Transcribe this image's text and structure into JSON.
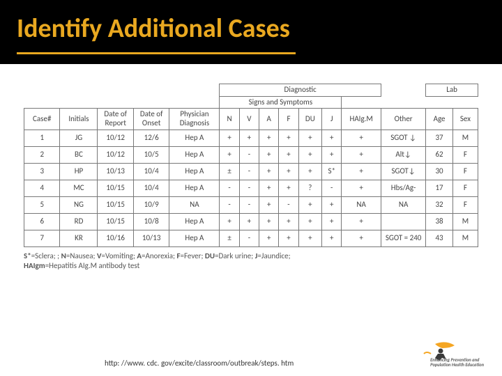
{
  "title": "Identify Additional Cases",
  "colors": {
    "titleBg": "#000000",
    "titleText": "#e9a820",
    "underline": "#e9a820",
    "tableBorder": "#777777",
    "tableText": "#444444",
    "pageBg": "#ffffff"
  },
  "table": {
    "groupHeaders": {
      "diagnostic": "Diagnostic",
      "lab": "Lab",
      "signs": "Signs and Symptoms"
    },
    "columns": [
      "Case#",
      "Initials",
      "Date of Report",
      "Date of Onset",
      "Physician Diagnosis",
      "N",
      "V",
      "A",
      "F",
      "DU",
      "J",
      "HAIg.M",
      "Other",
      "Age",
      "Sex"
    ],
    "rows": [
      [
        "1",
        "JG",
        "10/12",
        "12/6",
        "Hep A",
        "+",
        "+",
        "+",
        "+",
        "+",
        "+",
        "+",
        "SGOT ↓",
        "37",
        "M"
      ],
      [
        "2",
        "BC",
        "10/12",
        "10/5",
        "Hep A",
        "+",
        "-",
        "+",
        "+",
        "+",
        "+",
        "+",
        "Alt↓",
        "62",
        "F"
      ],
      [
        "3",
        "HP",
        "10/13",
        "10/4",
        "Hep A",
        "±",
        "-",
        "+",
        "+",
        "+",
        "S*",
        "+",
        "SGOT↓",
        "30",
        "F"
      ],
      [
        "4",
        "MC",
        "10/15",
        "10/4",
        "Hep A",
        "-",
        "-",
        "+",
        "+",
        "?",
        "-",
        "+",
        "Hbs/Ag-",
        "17",
        "F"
      ],
      [
        "5",
        "NG",
        "10/15",
        "10/9",
        "NA",
        "-",
        "-",
        "+",
        "-",
        "+",
        "+",
        "NA",
        "NA",
        "32",
        "F"
      ],
      [
        "6",
        "RD",
        "10/15",
        "10/8",
        "Hep A",
        "+",
        "+",
        "+",
        "+",
        "+",
        "+",
        "+",
        "",
        "38",
        "M"
      ],
      [
        "7",
        "KR",
        "10/16",
        "10/13",
        "Hep A",
        "±",
        "-",
        "+",
        "+",
        "+",
        "+",
        "+",
        "SGOT = 240",
        "43",
        "M"
      ]
    ],
    "colWidths": [
      "40",
      "42",
      "40",
      "40",
      "56",
      "22",
      "22",
      "22",
      "22",
      "26",
      "22",
      "44",
      "50",
      "30",
      "28"
    ]
  },
  "footnote1": "S*=Sclera; ; N=Nausea; V=Vomiting; A=Anorexia; F=Fever; DU=Dark urine; J=Jaundice;",
  "footnote2": "HAIgm=Hepatitis AIg.M antibody test",
  "source": "http: //www. cdc. gov/excite/classroom/outbreak/steps. htm",
  "logoText1": "Enhancing Prevention and",
  "logoText2": "Population Health Education"
}
